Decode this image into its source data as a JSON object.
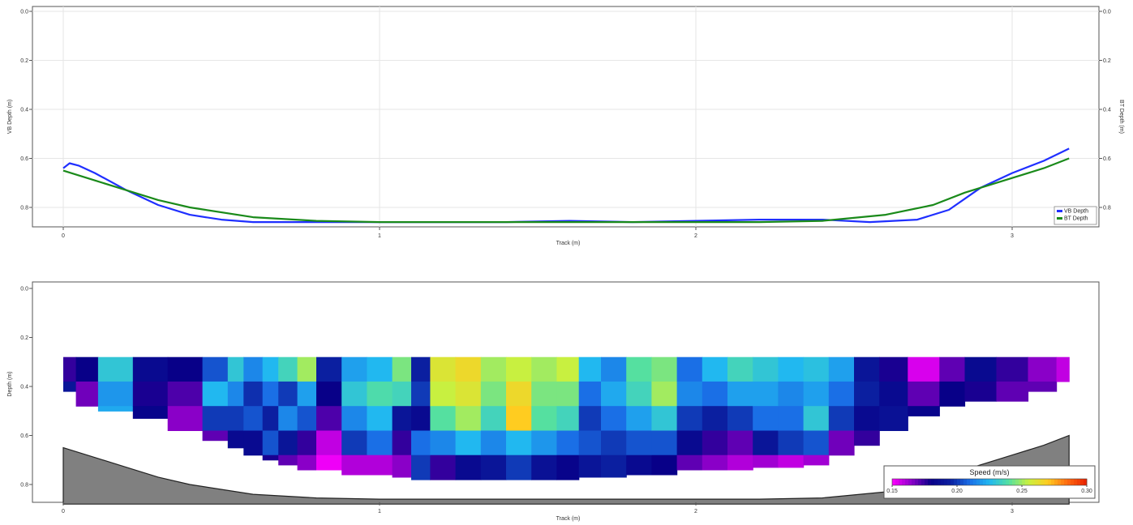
{
  "chart_data": [
    {
      "type": "line",
      "xlabel": "Track (m)",
      "ylabel": "VB Depth (m)",
      "ylabel_right": "BT Depth (m)",
      "xlim": [
        0,
        3.26
      ],
      "ylim": [
        0,
        0.88
      ],
      "y_inverted": true,
      "grid": true,
      "legend_position": "bottom-right",
      "x_ticks": [
        "0",
        "1",
        "2",
        "3"
      ],
      "y_ticks": [
        "0.0",
        "0.2",
        "0.4",
        "0.6",
        "0.8"
      ],
      "y_ticks_right": [
        "0.0",
        "0.2",
        "0.4",
        "0.6",
        "0.8"
      ],
      "series": [
        {
          "name": "VB Depth",
          "color": "#1f2fff",
          "x": [
            0.0,
            0.02,
            0.05,
            0.1,
            0.2,
            0.3,
            0.4,
            0.5,
            0.6,
            0.8,
            1.0,
            1.2,
            1.4,
            1.6,
            1.8,
            2.0,
            2.2,
            2.4,
            2.55,
            2.7,
            2.8,
            2.9,
            3.0,
            3.1,
            3.18
          ],
          "values": [
            0.64,
            0.62,
            0.63,
            0.66,
            0.73,
            0.79,
            0.83,
            0.85,
            0.86,
            0.86,
            0.86,
            0.86,
            0.86,
            0.855,
            0.86,
            0.855,
            0.85,
            0.85,
            0.86,
            0.85,
            0.81,
            0.72,
            0.66,
            0.61,
            0.56
          ]
        },
        {
          "name": "BT Depth",
          "color": "#1a8a1a",
          "x": [
            0.0,
            0.1,
            0.2,
            0.3,
            0.4,
            0.6,
            0.8,
            1.0,
            1.2,
            1.4,
            1.6,
            1.8,
            2.0,
            2.2,
            2.4,
            2.6,
            2.75,
            2.85,
            3.0,
            3.1,
            3.18
          ],
          "values": [
            0.65,
            0.69,
            0.73,
            0.77,
            0.8,
            0.84,
            0.855,
            0.86,
            0.86,
            0.86,
            0.86,
            0.86,
            0.86,
            0.86,
            0.855,
            0.83,
            0.79,
            0.74,
            0.68,
            0.64,
            0.6
          ]
        }
      ]
    },
    {
      "type": "heatmap",
      "xlabel": "Track (m)",
      "ylabel": "Depth (m)",
      "xlim": [
        0,
        3.26
      ],
      "ylim": [
        0,
        0.88
      ],
      "y_inverted": true,
      "x_ticks": [
        "0",
        "1",
        "2",
        "3"
      ],
      "y_ticks": [
        "0.0",
        "0.2",
        "0.4",
        "0.6",
        "0.8"
      ],
      "colorbar": {
        "title": "Speed (m/s)",
        "min": 0.15,
        "max": 0.3,
        "ticks": [
          "0.15",
          "0.20",
          "0.25",
          "0.30"
        ],
        "colors": [
          "#ff00ff",
          "#8a00c8",
          "#080088",
          "#0b1fa0",
          "#1a6fe6",
          "#21b8f0",
          "#55e0a0",
          "#c8f040",
          "#ffcc20",
          "#ff6a10",
          "#e82000"
        ]
      },
      "bed_fill_color": "#808080",
      "top_depth": 0.28,
      "cell_depth": 0.1,
      "columns": [
        {
          "x0": 0.0,
          "x1": 0.04,
          "bottom": 0.42,
          "values": [
            0.175,
            0.19
          ]
        },
        {
          "x0": 0.04,
          "x1": 0.11,
          "bottom": 0.48,
          "values": [
            0.18,
            0.168,
            0.175
          ]
        },
        {
          "x0": 0.11,
          "x1": 0.22,
          "bottom": 0.5,
          "values": [
            0.23,
            0.218,
            0.222
          ]
        },
        {
          "x0": 0.22,
          "x1": 0.33,
          "bottom": 0.53,
          "values": [
            0.185,
            0.178,
            0.182
          ]
        },
        {
          "x0": 0.33,
          "x1": 0.44,
          "bottom": 0.58,
          "values": [
            0.18,
            0.172,
            0.165,
            0.162
          ]
        },
        {
          "x0": 0.44,
          "x1": 0.52,
          "bottom": 0.62,
          "values": [
            0.205,
            0.225,
            0.2,
            0.17
          ]
        },
        {
          "x0": 0.52,
          "x1": 0.57,
          "bottom": 0.65,
          "values": [
            0.23,
            0.215,
            0.2,
            0.185,
            0.168
          ]
        },
        {
          "x0": 0.57,
          "x1": 0.63,
          "bottom": 0.68,
          "values": [
            0.215,
            0.198,
            0.205,
            0.185,
            0.175
          ]
        },
        {
          "x0": 0.63,
          "x1": 0.68,
          "bottom": 0.7,
          "values": [
            0.225,
            0.21,
            0.195,
            0.205,
            0.178
          ]
        },
        {
          "x0": 0.68,
          "x1": 0.74,
          "bottom": 0.72,
          "values": [
            0.235,
            0.2,
            0.215,
            0.19,
            0.17
          ]
        },
        {
          "x0": 0.74,
          "x1": 0.8,
          "bottom": 0.74,
          "values": [
            0.25,
            0.22,
            0.205,
            0.175,
            0.165
          ]
        },
        {
          "x0": 0.8,
          "x1": 0.88,
          "bottom": 0.74,
          "values": [
            0.195,
            0.18,
            0.172,
            0.158,
            0.152
          ]
        },
        {
          "x0": 0.88,
          "x1": 0.96,
          "bottom": 0.76,
          "values": [
            0.22,
            0.23,
            0.215,
            0.2,
            0.16
          ]
        },
        {
          "x0": 0.96,
          "x1": 1.04,
          "bottom": 0.76,
          "values": [
            0.225,
            0.238,
            0.225,
            0.21,
            0.16
          ]
        },
        {
          "x0": 1.04,
          "x1": 1.1,
          "bottom": 0.77,
          "values": [
            0.245,
            0.235,
            0.19,
            0.175,
            0.165
          ]
        },
        {
          "x0": 1.1,
          "x1": 1.16,
          "bottom": 0.78,
          "values": [
            0.195,
            0.2,
            0.185,
            0.21,
            0.2
          ]
        },
        {
          "x0": 1.16,
          "x1": 1.24,
          "bottom": 0.78,
          "values": [
            0.26,
            0.255,
            0.24,
            0.215,
            0.175
          ]
        },
        {
          "x0": 1.24,
          "x1": 1.32,
          "bottom": 0.78,
          "values": [
            0.265,
            0.26,
            0.25,
            0.225,
            0.185
          ]
        },
        {
          "x0": 1.32,
          "x1": 1.4,
          "bottom": 0.78,
          "values": [
            0.25,
            0.245,
            0.235,
            0.215,
            0.19
          ]
        },
        {
          "x0": 1.4,
          "x1": 1.48,
          "bottom": 0.78,
          "values": [
            0.255,
            0.265,
            0.27,
            0.225,
            0.2
          ]
        },
        {
          "x0": 1.48,
          "x1": 1.56,
          "bottom": 0.78,
          "values": [
            0.25,
            0.245,
            0.24,
            0.218,
            0.188
          ]
        },
        {
          "x0": 1.56,
          "x1": 1.63,
          "bottom": 0.78,
          "values": [
            0.255,
            0.245,
            0.235,
            0.21,
            0.182
          ]
        },
        {
          "x0": 1.63,
          "x1": 1.7,
          "bottom": 0.77,
          "values": [
            0.225,
            0.21,
            0.2,
            0.205,
            0.19
          ]
        },
        {
          "x0": 1.7,
          "x1": 1.78,
          "bottom": 0.77,
          "values": [
            0.215,
            0.222,
            0.21,
            0.2,
            0.195
          ]
        },
        {
          "x0": 1.78,
          "x1": 1.86,
          "bottom": 0.76,
          "values": [
            0.24,
            0.235,
            0.22,
            0.205,
            0.185
          ]
        },
        {
          "x0": 1.86,
          "x1": 1.94,
          "bottom": 0.76,
          "values": [
            0.245,
            0.25,
            0.23,
            0.205,
            0.18
          ]
        },
        {
          "x0": 1.94,
          "x1": 2.02,
          "bottom": 0.74,
          "values": [
            0.21,
            0.215,
            0.2,
            0.185,
            0.17
          ]
        },
        {
          "x0": 2.02,
          "x1": 2.1,
          "bottom": 0.74,
          "values": [
            0.225,
            0.21,
            0.195,
            0.175,
            0.165
          ]
        },
        {
          "x0": 2.1,
          "x1": 2.18,
          "bottom": 0.74,
          "values": [
            0.235,
            0.22,
            0.2,
            0.17,
            0.16
          ]
        },
        {
          "x0": 2.18,
          "x1": 2.26,
          "bottom": 0.73,
          "values": [
            0.23,
            0.22,
            0.21,
            0.19,
            0.162
          ]
        },
        {
          "x0": 2.26,
          "x1": 2.34,
          "bottom": 0.73,
          "values": [
            0.225,
            0.215,
            0.21,
            0.2,
            0.158
          ]
        },
        {
          "x0": 2.34,
          "x1": 2.42,
          "bottom": 0.72,
          "values": [
            0.228,
            0.22,
            0.23,
            0.205,
            0.162
          ]
        },
        {
          "x0": 2.42,
          "x1": 2.5,
          "bottom": 0.68,
          "values": [
            0.22,
            0.21,
            0.2,
            0.168
          ]
        },
        {
          "x0": 2.5,
          "x1": 2.58,
          "bottom": 0.64,
          "values": [
            0.19,
            0.195,
            0.185,
            0.175
          ]
        },
        {
          "x0": 2.58,
          "x1": 2.67,
          "bottom": 0.58,
          "values": [
            0.178,
            0.185,
            0.188
          ]
        },
        {
          "x0": 2.67,
          "x1": 2.77,
          "bottom": 0.52,
          "values": [
            0.155,
            0.17,
            0.182
          ]
        },
        {
          "x0": 2.77,
          "x1": 2.85,
          "bottom": 0.48,
          "values": [
            0.17,
            0.18
          ]
        },
        {
          "x0": 2.85,
          "x1": 2.95,
          "bottom": 0.46,
          "values": [
            0.185,
            0.178
          ]
        },
        {
          "x0": 2.95,
          "x1": 3.05,
          "bottom": 0.46,
          "values": [
            0.175,
            0.17
          ]
        },
        {
          "x0": 3.05,
          "x1": 3.14,
          "bottom": 0.42,
          "values": [
            0.165,
            0.17
          ]
        },
        {
          "x0": 3.14,
          "x1": 3.18,
          "bottom": 0.4,
          "values": [
            0.158
          ]
        }
      ],
      "bed": {
        "x": [
          0.0,
          0.1,
          0.2,
          0.3,
          0.4,
          0.6,
          0.8,
          1.0,
          1.2,
          1.4,
          1.6,
          1.8,
          2.0,
          2.2,
          2.4,
          2.6,
          2.75,
          2.85,
          3.0,
          3.1,
          3.18
        ],
        "depth": [
          0.65,
          0.69,
          0.73,
          0.77,
          0.8,
          0.84,
          0.855,
          0.86,
          0.86,
          0.86,
          0.86,
          0.86,
          0.86,
          0.86,
          0.855,
          0.83,
          0.79,
          0.74,
          0.68,
          0.64,
          0.6
        ]
      }
    }
  ]
}
